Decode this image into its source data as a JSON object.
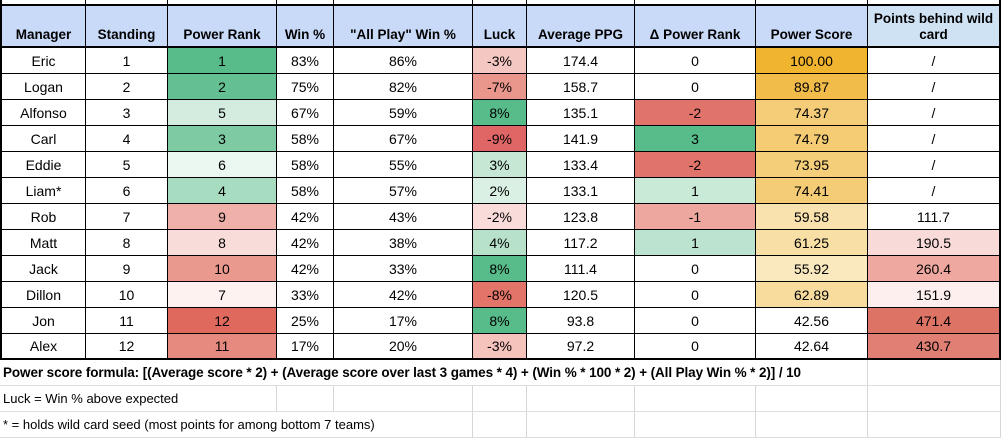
{
  "table": {
    "columns": [
      {
        "key": "manager",
        "label": "Manager",
        "header_bg": "#c9daf8"
      },
      {
        "key": "standing",
        "label": "Standing",
        "header_bg": "#c9daf8"
      },
      {
        "key": "power-rank",
        "label": "Power Rank",
        "header_bg": "#c9daf8"
      },
      {
        "key": "win-pct",
        "label": "Win %",
        "header_bg": "#c9daf8"
      },
      {
        "key": "all-play-win",
        "label": "\"All Play\" Win %",
        "header_bg": "#c9daf8"
      },
      {
        "key": "luck",
        "label": "Luck",
        "header_bg": "#c9daf8"
      },
      {
        "key": "average-ppg",
        "label": "Average PPG",
        "header_bg": "#c9daf8"
      },
      {
        "key": "delta-rank",
        "label": "Δ Power Rank",
        "header_bg": "#c9daf8"
      },
      {
        "key": "power-score",
        "label": "Power Score",
        "header_bg": "#c9daf8"
      },
      {
        "key": "points-behind",
        "label": "Points behind wild card",
        "header_bg": "#cfe2f3"
      }
    ],
    "rows": [
      {
        "cells": [
          {
            "v": "Eric"
          },
          {
            "v": "1"
          },
          {
            "v": "1",
            "bg": "#57bb8a"
          },
          {
            "v": "83%"
          },
          {
            "v": "86%"
          },
          {
            "v": "-3%",
            "bg": "#f5c7c2"
          },
          {
            "v": "174.4"
          },
          {
            "v": "0"
          },
          {
            "v": "100.00",
            "bg": "#f0b42e"
          },
          {
            "v": "/"
          }
        ]
      },
      {
        "cells": [
          {
            "v": "Logan"
          },
          {
            "v": "2"
          },
          {
            "v": "2",
            "bg": "#64c092"
          },
          {
            "v": "75%"
          },
          {
            "v": "82%"
          },
          {
            "v": "-7%",
            "bg": "#e9968c"
          },
          {
            "v": "158.7"
          },
          {
            "v": "0"
          },
          {
            "v": "89.87",
            "bg": "#f2bc4b"
          },
          {
            "v": "/"
          }
        ]
      },
      {
        "cells": [
          {
            "v": "Alfonso"
          },
          {
            "v": "3"
          },
          {
            "v": "5",
            "bg": "#d3ecdf"
          },
          {
            "v": "67%"
          },
          {
            "v": "59%"
          },
          {
            "v": "8%",
            "bg": "#57bb8a"
          },
          {
            "v": "135.1"
          },
          {
            "v": "-2",
            "bg": "#e0746a"
          },
          {
            "v": "74.37",
            "bg": "#f5cd78"
          },
          {
            "v": "/"
          }
        ]
      },
      {
        "cells": [
          {
            "v": "Carl"
          },
          {
            "v": "4"
          },
          {
            "v": "3",
            "bg": "#7ecaa3"
          },
          {
            "v": "58%"
          },
          {
            "v": "67%"
          },
          {
            "v": "-9%",
            "bg": "#e06666"
          },
          {
            "v": "141.9"
          },
          {
            "v": "3",
            "bg": "#57bb8a"
          },
          {
            "v": "74.79",
            "bg": "#f5cc74"
          },
          {
            "v": "/"
          }
        ]
      },
      {
        "cells": [
          {
            "v": "Eddie"
          },
          {
            "v": "5"
          },
          {
            "v": "6",
            "bg": "#ebf7f1"
          },
          {
            "v": "58%"
          },
          {
            "v": "55%"
          },
          {
            "v": "3%",
            "bg": "#c5e7d3"
          },
          {
            "v": "133.4"
          },
          {
            "v": "-2",
            "bg": "#e0746a"
          },
          {
            "v": "73.95",
            "bg": "#f5ce7a"
          },
          {
            "v": "/"
          }
        ]
      },
      {
        "cells": [
          {
            "v": "Liam*"
          },
          {
            "v": "6"
          },
          {
            "v": "4",
            "bg": "#a7dcc0"
          },
          {
            "v": "58%"
          },
          {
            "v": "57%"
          },
          {
            "v": "2%",
            "bg": "#daf0e4"
          },
          {
            "v": "133.1"
          },
          {
            "v": "1",
            "bg": "#c9ead7"
          },
          {
            "v": "74.41",
            "bg": "#f5cc76"
          },
          {
            "v": "/"
          }
        ]
      },
      {
        "cells": [
          {
            "v": "Rob"
          },
          {
            "v": "7"
          },
          {
            "v": "9",
            "bg": "#efb0a9"
          },
          {
            "v": "42%"
          },
          {
            "v": "43%"
          },
          {
            "v": "-2%",
            "bg": "#f9dcd9"
          },
          {
            "v": "123.8"
          },
          {
            "v": "-1",
            "bg": "#eda79f"
          },
          {
            "v": "59.58",
            "bg": "#f9e2ae"
          },
          {
            "v": "111.7"
          }
        ]
      },
      {
        "cells": [
          {
            "v": "Matt"
          },
          {
            "v": "8"
          },
          {
            "v": "8",
            "bg": "#f8dcd9"
          },
          {
            "v": "42%"
          },
          {
            "v": "38%"
          },
          {
            "v": "4%",
            "bg": "#b7e1c9"
          },
          {
            "v": "117.2"
          },
          {
            "v": "1",
            "bg": "#bbe3cf"
          },
          {
            "v": "61.25",
            "bg": "#f8dfa6"
          },
          {
            "v": "190.5",
            "bg": "#f8dbd8"
          }
        ]
      },
      {
        "cells": [
          {
            "v": "Jack"
          },
          {
            "v": "9"
          },
          {
            "v": "10",
            "bg": "#ea998f"
          },
          {
            "v": "42%"
          },
          {
            "v": "33%"
          },
          {
            "v": "8%",
            "bg": "#57bb8a"
          },
          {
            "v": "111.4"
          },
          {
            "v": "0"
          },
          {
            "v": "55.92",
            "bg": "#fae9bf"
          },
          {
            "v": "260.4",
            "bg": "#efa8a0"
          }
        ]
      },
      {
        "cells": [
          {
            "v": "Dillon"
          },
          {
            "v": "10"
          },
          {
            "v": "7",
            "bg": "#fdf2f0"
          },
          {
            "v": "33%"
          },
          {
            "v": "42%"
          },
          {
            "v": "-8%",
            "bg": "#e2746a"
          },
          {
            "v": "120.5"
          },
          {
            "v": "0"
          },
          {
            "v": "62.89",
            "bg": "#f8dc9e"
          },
          {
            "v": "151.9",
            "bg": "#fdefed"
          }
        ]
      },
      {
        "cells": [
          {
            "v": "Jon"
          },
          {
            "v": "11"
          },
          {
            "v": "12",
            "bg": "#e0695d"
          },
          {
            "v": "25%"
          },
          {
            "v": "17%"
          },
          {
            "v": "8%",
            "bg": "#57bb8a"
          },
          {
            "v": "93.8"
          },
          {
            "v": "0"
          },
          {
            "v": "42.56"
          },
          {
            "v": "471.4",
            "bg": "#dd7365"
          }
        ]
      },
      {
        "cells": [
          {
            "v": "Alex"
          },
          {
            "v": "12"
          },
          {
            "v": "11",
            "bg": "#e68a7f"
          },
          {
            "v": "17%"
          },
          {
            "v": "20%"
          },
          {
            "v": "-3%",
            "bg": "#f5c2bc"
          },
          {
            "v": "97.2"
          },
          {
            "v": "0"
          },
          {
            "v": "42.64"
          },
          {
            "v": "430.7",
            "bg": "#e07f73"
          }
        ]
      }
    ]
  },
  "footnotes": [
    {
      "text": "Power score formula: [(Average score * 2) + (Average score over last 3 games * 4) + (Win % * 100 * 2) + (All Play Win % * 2)] / 10",
      "bold": true,
      "grid_from": 8
    },
    {
      "text": "Luck = Win % above expected",
      "bold": false,
      "grid_from": 2
    },
    {
      "text": "* = holds wild card seed (most points for among bottom 7 teams)",
      "bold": false,
      "grid_from": 4
    }
  ],
  "colors": {
    "header_blue": "#c9daf8",
    "header_light_blue": "#cfe2f3",
    "scale_green": "#57bb8a",
    "scale_red": "#e06666",
    "scale_gold": "#f0b42e",
    "table_border": "#000000",
    "gridline": "#d6d6d6"
  }
}
